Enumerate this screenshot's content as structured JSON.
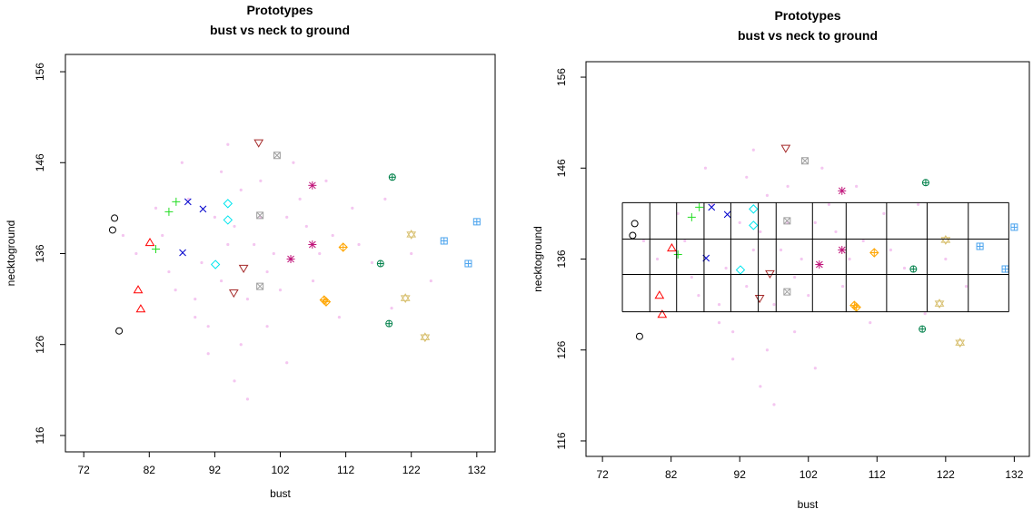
{
  "chart_data": [
    {
      "type": "scatter",
      "title": "Prototypes",
      "subtitle": "bust vs neck to ground",
      "xlabel": "bust",
      "ylabel": "necktoground",
      "xlim": [
        69.2,
        134.8
      ],
      "ylim": [
        114.2,
        157.9
      ],
      "xticks": [
        72,
        82,
        92,
        102,
        112,
        122,
        132
      ],
      "yticks": [
        116,
        126,
        136,
        146,
        156
      ],
      "series": [
        {
          "color": "#f4c6f0",
          "marker": "dot",
          "x": [
            84,
            88,
            90,
            93,
            95,
            97,
            99,
            101,
            103,
            86,
            91,
            94,
            96,
            100,
            104,
            107,
            110,
            113,
            116,
            119,
            83,
            85,
            89,
            92,
            98,
            102,
            105,
            108,
            111,
            87,
            93,
            96,
            99,
            106,
            109,
            114,
            80,
            122,
            125,
            95,
            91,
            100,
            94,
            97,
            118,
            78,
            89,
            103
          ],
          "values": [
            138,
            142,
            135,
            145,
            139,
            131,
            144,
            136,
            140,
            132,
            128,
            137,
            143,
            134,
            146,
            133,
            138,
            141,
            135,
            130,
            141,
            134,
            129,
            140,
            137,
            132,
            142,
            136,
            129,
            146,
            133,
            126,
            140,
            139,
            144,
            137,
            136,
            136,
            133,
            122,
            125,
            128,
            148,
            120,
            142,
            138,
            131,
            124
          ]
        },
        {
          "color": "#000000",
          "marker": "circle",
          "x": [
            76.7,
            76.4,
            77.4
          ],
          "values": [
            139.9,
            138.6,
            127.5
          ]
        },
        {
          "color": "#ff0000",
          "marker": "triangle",
          "x": [
            82.1,
            80.3,
            80.7
          ],
          "values": [
            137.2,
            132.0,
            129.9
          ]
        },
        {
          "color": "#22dd22",
          "marker": "plus",
          "x": [
            83.0,
            85.0,
            86.1
          ],
          "values": [
            136.5,
            140.6,
            141.7
          ]
        },
        {
          "color": "#0000cc",
          "marker": "cross",
          "x": [
            87.1,
            87.9,
            90.2
          ],
          "values": [
            136.1,
            141.7,
            140.9
          ]
        },
        {
          "color": "#00e5ee",
          "marker": "diamond",
          "x": [
            92.1,
            94.0,
            94.0
          ],
          "values": [
            134.8,
            141.5,
            139.7
          ]
        },
        {
          "color": "#a52a2a",
          "marker": "triangle-down",
          "x": [
            98.7,
            96.4,
            94.9
          ],
          "values": [
            148.2,
            134.4,
            131.7
          ]
        },
        {
          "color": "#a0a0a0",
          "marker": "square-x",
          "x": [
            101.5,
            98.9,
            98.9
          ],
          "values": [
            146.8,
            140.2,
            132.4
          ]
        },
        {
          "color": "#c0147a",
          "marker": "asterisk",
          "x": [
            106.9,
            106.9,
            103.6
          ],
          "values": [
            143.5,
            137.0,
            135.4
          ]
        },
        {
          "color": "#ffa500",
          "marker": "diamond-plus",
          "x": [
            111.6,
            108.7,
            109.0
          ],
          "values": [
            136.7,
            130.9,
            130.7
          ]
        },
        {
          "color": "#00804a",
          "marker": "circle-plus",
          "x": [
            119.1,
            117.3,
            118.6
          ],
          "values": [
            144.4,
            134.9,
            128.3
          ]
        },
        {
          "color": "#d8c070",
          "marker": "star",
          "x": [
            122.0,
            121.1,
            124.1
          ],
          "values": [
            138.1,
            131.1,
            126.8
          ]
        },
        {
          "color": "#4aa3ee",
          "marker": "square-plus",
          "x": [
            132.0,
            127.0,
            130.7
          ],
          "values": [
            139.5,
            137.4,
            134.9
          ]
        }
      ]
    },
    {
      "type": "scatter",
      "title": "Prototypes",
      "subtitle": "bust vs neck to ground",
      "xlabel": "bust",
      "ylabel": "necktoground",
      "xlim": [
        69.6,
        134.2
      ],
      "ylim": [
        114.3,
        157.7
      ],
      "xticks": [
        72,
        82,
        92,
        102,
        112,
        122,
        132
      ],
      "yticks": [
        116,
        126,
        136,
        146,
        156
      ],
      "cells_x": [
        74.9,
        78.9,
        82.8,
        86.8,
        90.7,
        94.7,
        97.3,
        102.6,
        107.5,
        113.4,
        119.3,
        125.3,
        131.2
      ],
      "cells_y": [
        142.2,
        138.2,
        134.3,
        130.2
      ],
      "series": [
        {
          "color": "#f4c6f0",
          "marker": "dot",
          "x": [
            84,
            88,
            90,
            93,
            95,
            97,
            99,
            101,
            103,
            86,
            91,
            94,
            96,
            100,
            104,
            107,
            110,
            113,
            116,
            119,
            83,
            85,
            89,
            92,
            98,
            102,
            105,
            108,
            111,
            87,
            93,
            96,
            99,
            106,
            109,
            114,
            80,
            122,
            125,
            95,
            91,
            100,
            94,
            97,
            118,
            78,
            89,
            103
          ],
          "values": [
            138,
            142,
            135,
            145,
            139,
            131,
            144,
            136,
            140,
            132,
            128,
            137,
            143,
            134,
            146,
            133,
            138,
            141,
            135,
            130,
            141,
            134,
            129,
            140,
            137,
            132,
            142,
            136,
            129,
            146,
            133,
            126,
            140,
            139,
            144,
            137,
            136,
            136,
            133,
            122,
            125,
            128,
            148,
            120,
            142,
            138,
            131,
            124
          ]
        },
        {
          "color": "#000000",
          "marker": "circle",
          "x": [
            76.7,
            76.4,
            77.4
          ],
          "values": [
            139.9,
            138.6,
            127.5
          ]
        },
        {
          "color": "#ff0000",
          "marker": "triangle",
          "x": [
            82.1,
            80.3,
            80.7
          ],
          "values": [
            137.2,
            132.0,
            129.9
          ]
        },
        {
          "color": "#22dd22",
          "marker": "plus",
          "x": [
            83.0,
            85.0,
            86.1
          ],
          "values": [
            136.5,
            140.6,
            141.7
          ]
        },
        {
          "color": "#0000cc",
          "marker": "cross",
          "x": [
            87.1,
            87.9,
            90.2
          ],
          "values": [
            136.1,
            141.7,
            140.9
          ]
        },
        {
          "color": "#00e5ee",
          "marker": "diamond",
          "x": [
            92.1,
            94.0,
            94.0
          ],
          "values": [
            134.8,
            141.5,
            139.7
          ]
        },
        {
          "color": "#a52a2a",
          "marker": "triangle-down",
          "x": [
            98.7,
            96.4,
            94.9
          ],
          "values": [
            148.2,
            134.4,
            131.7
          ]
        },
        {
          "color": "#a0a0a0",
          "marker": "square-x",
          "x": [
            101.5,
            98.9,
            98.9
          ],
          "values": [
            146.8,
            140.2,
            132.4
          ]
        },
        {
          "color": "#c0147a",
          "marker": "asterisk",
          "x": [
            106.9,
            106.9,
            103.6
          ],
          "values": [
            143.5,
            137.0,
            135.4
          ]
        },
        {
          "color": "#ffa500",
          "marker": "diamond-plus",
          "x": [
            111.6,
            108.7,
            109.0
          ],
          "values": [
            136.7,
            130.9,
            130.7
          ]
        },
        {
          "color": "#00804a",
          "marker": "circle-plus",
          "x": [
            119.1,
            117.3,
            118.6
          ],
          "values": [
            144.4,
            134.9,
            128.3
          ]
        },
        {
          "color": "#d8c070",
          "marker": "star",
          "x": [
            122.0,
            121.1,
            124.1
          ],
          "values": [
            138.1,
            131.1,
            126.8
          ]
        },
        {
          "color": "#4aa3ee",
          "marker": "square-plus",
          "x": [
            132.0,
            127.0,
            130.7
          ],
          "values": [
            139.5,
            137.4,
            134.9
          ]
        }
      ]
    }
  ]
}
